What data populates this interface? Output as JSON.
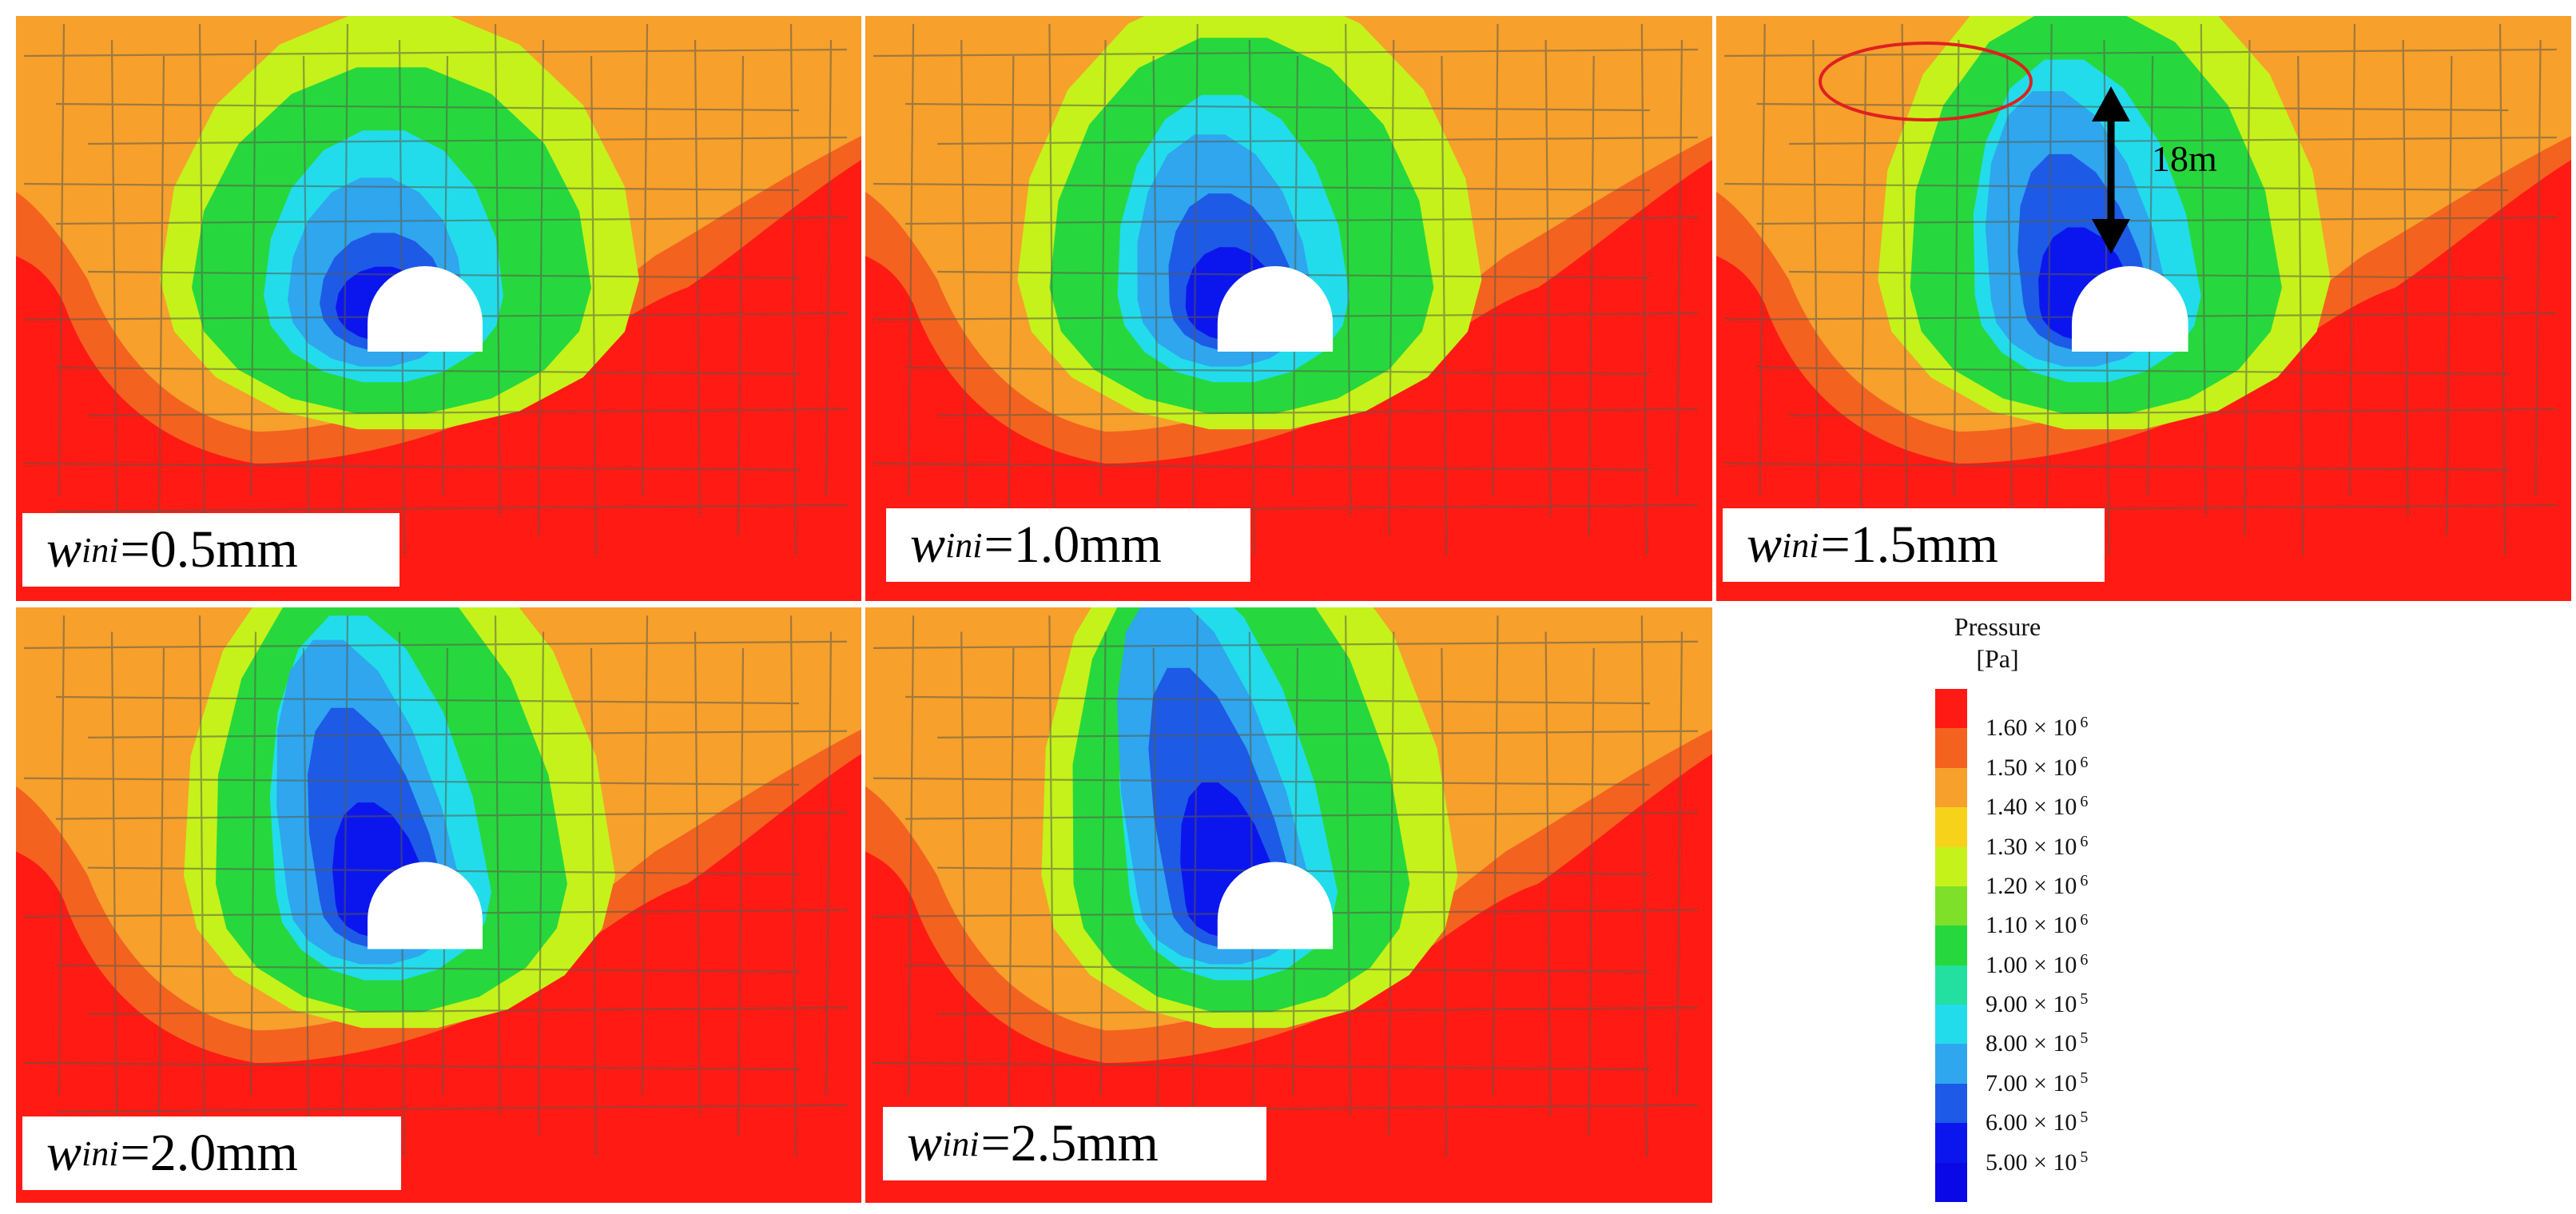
{
  "panels": [
    {
      "w": "w",
      "sub": "ini",
      "value": "=0.5mm"
    },
    {
      "w": "w",
      "sub": "ini",
      "value": "=1.0mm"
    },
    {
      "w": "w",
      "sub": "ini",
      "value": "=1.5mm"
    },
    {
      "w": "w",
      "sub": "ini",
      "value": "=2.0mm"
    },
    {
      "w": "w",
      "sub": "ini",
      "value": "=2.5mm"
    }
  ],
  "annotation": {
    "distance": "18m"
  },
  "legend": {
    "title": "Pressure",
    "unit": "[Pa]",
    "ticks": [
      {
        "mant": "1.60 × 10",
        "exp": "6"
      },
      {
        "mant": "1.50 × 10",
        "exp": "6"
      },
      {
        "mant": "1.40 × 10",
        "exp": "6"
      },
      {
        "mant": "1.30 × 10",
        "exp": "6"
      },
      {
        "mant": "1.20 × 10",
        "exp": "6"
      },
      {
        "mant": "1.10 × 10",
        "exp": "6"
      },
      {
        "mant": "1.00 × 10",
        "exp": "6"
      },
      {
        "mant": "9.00 × 10",
        "exp": "5"
      },
      {
        "mant": "8.00 × 10",
        "exp": "5"
      },
      {
        "mant": "7.00 × 10",
        "exp": "5"
      },
      {
        "mant": "6.00 × 10",
        "exp": "5"
      },
      {
        "mant": "5.00 × 10",
        "exp": "5"
      }
    ],
    "colors": [
      "#ff1a14",
      "#f4621f",
      "#f7a02c",
      "#f6d21a",
      "#c5f21a",
      "#7fe02a",
      "#26d83d",
      "#24e0a0",
      "#22dcec",
      "#2fa6ee",
      "#1d5ae6",
      "#0b16ee",
      "#0a08e6"
    ]
  },
  "zone_colors": {
    "red": "#ff1a14",
    "orange": "#f4621f",
    "amber": "#f7a02c",
    "yellow_green": "#c5f21a",
    "green": "#26d83d",
    "cyan": "#22dcec",
    "light_blue": "#2fa6ee",
    "blue": "#1d5ae6",
    "dark_blue": "#0b16ee",
    "cavity": "#ffffff",
    "annotation_ellipse": "#e02020"
  }
}
